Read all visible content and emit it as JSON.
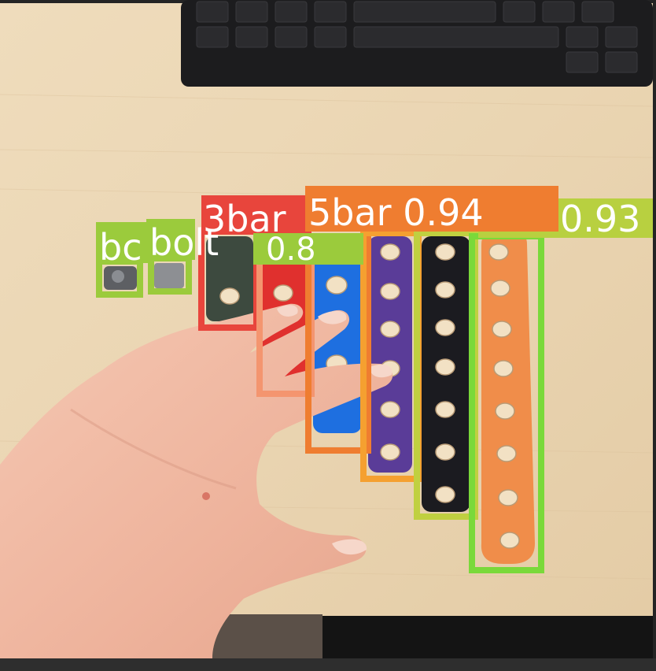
{
  "detections": [
    {
      "label": "bolt",
      "display_text": "bc",
      "color": "#9bcb3c"
    },
    {
      "label": "bolt",
      "display_text": "bolt",
      "color": "#9bcb3c"
    },
    {
      "label": "3bar",
      "display_text": "3bar",
      "color": "#e8453c"
    },
    {
      "label": "4bar",
      "display_text": "0.8",
      "color": "#f4956f"
    },
    {
      "label": "5bar",
      "display_text": "5bar 0.94",
      "color": "#ef7d30"
    },
    {
      "label": "6bar",
      "display_text": "",
      "color": "#f5a030"
    },
    {
      "label": "7bar",
      "display_text": "",
      "color": "#c0d040"
    },
    {
      "label": "8bar",
      "display_text": "0.93",
      "color": "#7ad93a"
    }
  ],
  "colors": {
    "table": "#ebd7b6",
    "keyboard": "#1c1c1e",
    "skin": "#f1b7a1",
    "bar_green": "#3d4a3f",
    "bar_red": "#e0302e",
    "bar_blue": "#1e6fe0",
    "bar_purple": "#5a3c98",
    "bar_black": "#1b1b20",
    "bar_orange": "#f08d4a"
  }
}
